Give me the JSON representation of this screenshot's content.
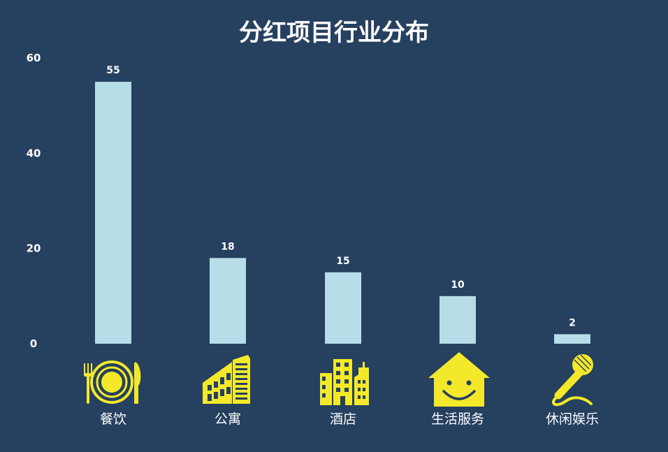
{
  "colors": {
    "background": "#26405f",
    "bar": "#b7dde8",
    "icon": "#f3e92a",
    "text": "#ffffff"
  },
  "chart_data": {
    "type": "bar",
    "title": "分红项目行业分布",
    "xlabel": "",
    "ylabel": "",
    "categories": [
      "餐饮",
      "公寓",
      "酒店",
      "生活服务",
      "休闲娱乐"
    ],
    "values": [
      55,
      18,
      15,
      10,
      2
    ],
    "ylim": [
      0,
      60
    ],
    "yticks": [
      "0",
      "20",
      "40",
      "60"
    ],
    "ytick_values": [
      0,
      20,
      40,
      60
    ],
    "grid": false,
    "legend": "none",
    "category_icons": [
      "dining-plate-icon",
      "apartment-building-icon",
      "hotel-buildings-icon",
      "smiling-house-icon",
      "microphone-icon"
    ]
  }
}
